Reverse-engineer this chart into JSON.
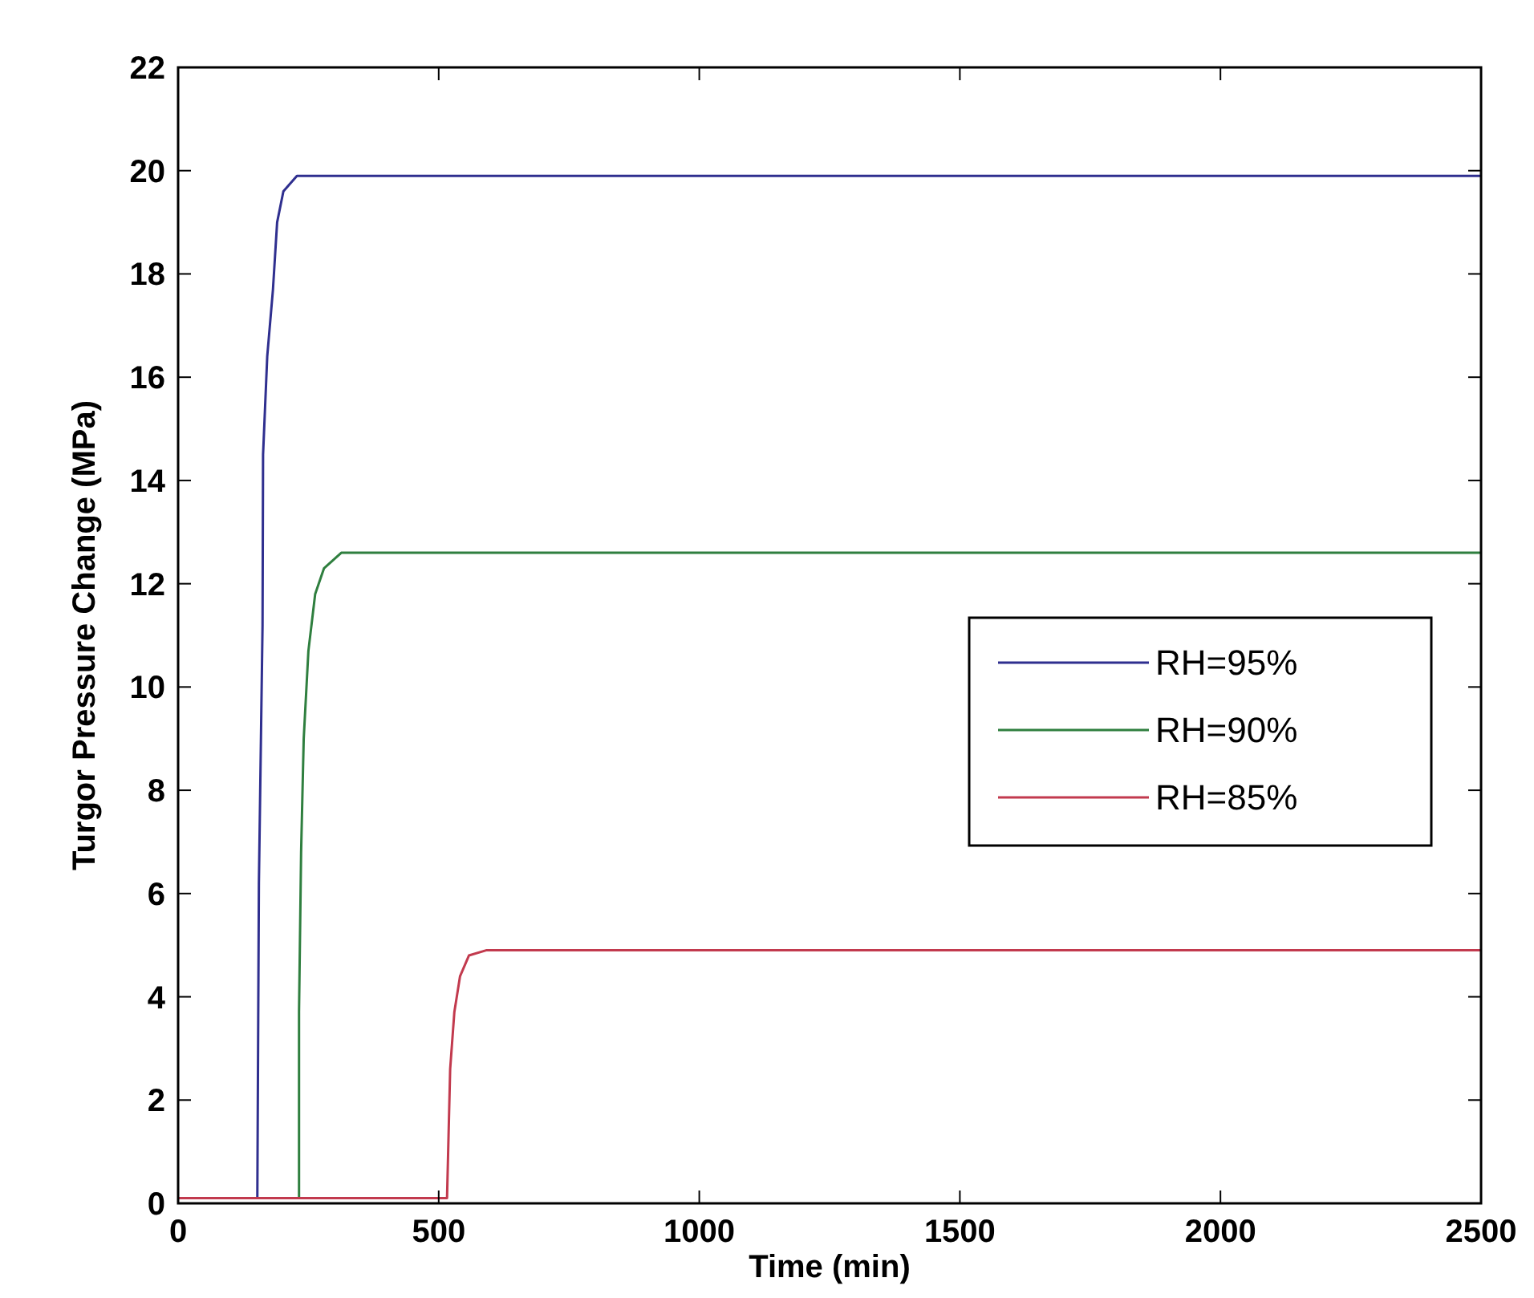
{
  "chart_data": {
    "type": "line",
    "xlabel": "Time (min)",
    "ylabel": "Turgor Pressure Change (MPa)",
    "xlim": [
      0,
      2500
    ],
    "ylim": [
      0,
      22
    ],
    "xticks": [
      0,
      500,
      1000,
      1500,
      2000,
      2500
    ],
    "yticks": [
      0,
      2,
      4,
      6,
      8,
      10,
      12,
      14,
      16,
      18,
      20,
      22
    ],
    "legend": "right",
    "grid": false,
    "marker": "none",
    "line_style": "solid",
    "series": [
      {
        "name": "RH=95%",
        "color": "#2f2f8f",
        "x": [
          0,
          152,
          155,
          162,
          163,
          171,
          182,
          190,
          202,
          228,
          2500
        ],
        "values": [
          0.1,
          0.1,
          6.2,
          11.2,
          14.5,
          16.4,
          17.7,
          19.0,
          19.6,
          19.9,
          19.9
        ]
      },
      {
        "name": "RH=90%",
        "color": "#2f7f3f",
        "x": [
          0,
          232,
          232,
          236,
          241,
          250,
          263,
          280,
          313,
          2500
        ],
        "values": [
          0.1,
          0.1,
          3.7,
          6.8,
          9.0,
          10.7,
          11.8,
          12.3,
          12.6,
          12.6
        ]
      },
      {
        "name": "RH=85%",
        "color": "#c23a4e",
        "x": [
          0,
          516,
          522,
          530,
          541,
          558,
          591,
          2500
        ],
        "values": [
          0.1,
          0.1,
          2.6,
          3.7,
          4.4,
          4.8,
          4.9,
          4.9
        ]
      }
    ]
  }
}
